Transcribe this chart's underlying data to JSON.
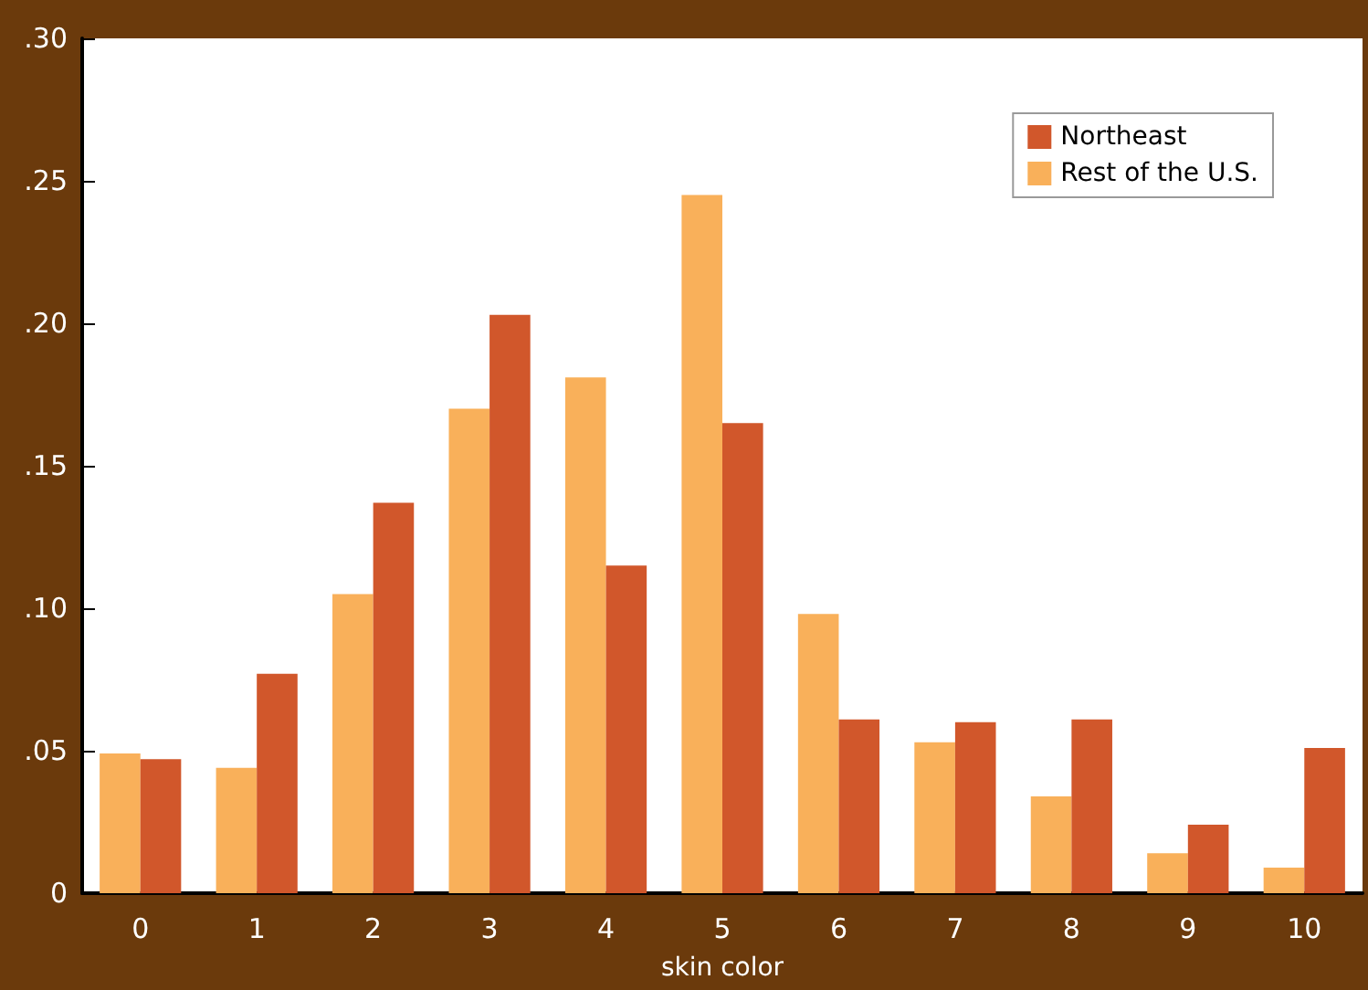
{
  "chart_data": {
    "type": "bar",
    "xlabel": "skin color",
    "categories": [
      "0",
      "1",
      "2",
      "3",
      "4",
      "5",
      "6",
      "7",
      "8",
      "9",
      "10"
    ],
    "series": [
      {
        "name": "Rest of the U.S.",
        "color": "#f9b05a",
        "values": [
          0.049,
          0.044,
          0.105,
          0.17,
          0.181,
          0.245,
          0.098,
          0.053,
          0.034,
          0.014,
          0.009
        ]
      },
      {
        "name": "Northeast",
        "color": "#d1572b",
        "values": [
          0.047,
          0.077,
          0.137,
          0.203,
          0.115,
          0.165,
          0.061,
          0.06,
          0.061,
          0.024,
          0.051
        ]
      }
    ],
    "ylim": [
      0,
      0.3
    ],
    "yticks": [
      0,
      {
        "value": 0.05,
        "label": ".05"
      },
      {
        "value": 0.1,
        "label": ".10"
      },
      {
        "value": 0.15,
        "label": ".15"
      },
      {
        "value": 0.2,
        "label": ".20"
      },
      {
        "value": 0.25,
        "label": ".25"
      },
      {
        "value": 0.3,
        "label": ".30"
      }
    ],
    "grid": false,
    "legend": "top right"
  }
}
